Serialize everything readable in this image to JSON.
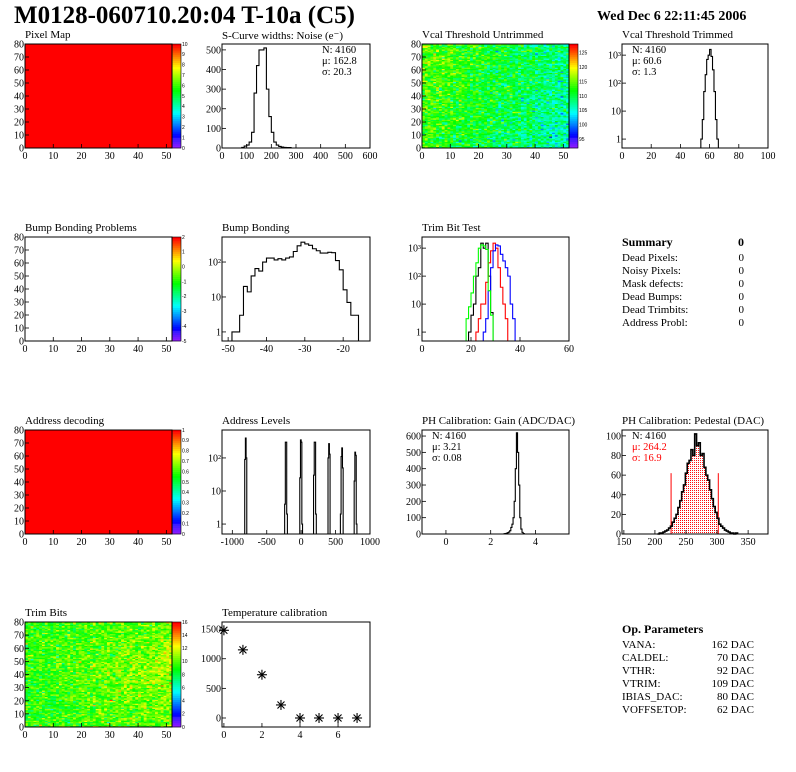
{
  "header": {
    "title": "M0128-060710.20:04 T-10a (C5)",
    "date": "Wed Dec  6 22:11:45 2006"
  },
  "palette": {
    "low": "#6600cc",
    "high": "#ff0000"
  },
  "chart_data": [
    {
      "type": "heatmap",
      "title": "Pixel Map",
      "xlim": [
        0,
        52
      ],
      "ylim": [
        0,
        80
      ],
      "xticks": [
        0,
        10,
        20,
        30,
        40,
        50
      ],
      "yticks": [
        0,
        10,
        20,
        30,
        40,
        50,
        60,
        70,
        80
      ],
      "zlim": [
        0,
        10
      ],
      "zticks": [
        "0",
        "1",
        "2",
        "3",
        "4",
        "5",
        "6",
        "7",
        "8",
        "9",
        "10"
      ],
      "uniform_value": 10
    },
    {
      "type": "bar",
      "title": "S-Curve widths: Noise (e⁻)",
      "xlim": [
        0,
        600
      ],
      "ylim": [
        0,
        530
      ],
      "xticks": [
        0,
        100,
        200,
        300,
        400,
        500,
        600
      ],
      "yticks": [
        0,
        100,
        200,
        300,
        400,
        500
      ],
      "bin_start": 80,
      "bin_width": 10,
      "values": [
        3,
        10,
        15,
        30,
        80,
        280,
        420,
        500,
        500,
        510,
        300,
        160,
        80,
        30,
        15,
        8,
        5,
        3,
        2,
        2
      ],
      "stats": [
        "N: 4160",
        "μ: 162.8",
        "σ: 20.3"
      ]
    },
    {
      "type": "heatmap",
      "title": "Vcal Threshold Untrimmed",
      "xlim": [
        0,
        52
      ],
      "ylim": [
        0,
        80
      ],
      "xticks": [
        0,
        10,
        20,
        30,
        40,
        50
      ],
      "yticks": [
        0,
        10,
        20,
        30,
        40,
        50,
        60,
        70,
        80
      ],
      "zlim": [
        92,
        128
      ],
      "zticks": [
        "95",
        "100",
        "105",
        "110",
        "115",
        "120",
        "125"
      ]
    },
    {
      "type": "bar",
      "title": "Vcal Threshold Trimmed",
      "log_y": true,
      "xlim": [
        0,
        100
      ],
      "ylim": [
        0.48,
        2500
      ],
      "xticks": [
        0,
        20,
        40,
        60,
        80,
        100
      ],
      "yticks": [
        1,
        10,
        100,
        1000
      ],
      "ytick_labels": [
        "1",
        "10",
        "10²",
        "10³"
      ],
      "bin_start": 54,
      "bin_width": 1,
      "values": [
        1,
        5,
        50,
        200,
        700,
        1000,
        1600,
        900,
        300,
        50,
        5,
        1
      ],
      "stats": [
        "N: 4160",
        "μ: 60.6",
        "σ:  1.3"
      ]
    },
    {
      "type": "heatmap",
      "title": "Bump Bonding Problems",
      "xlim": [
        0,
        52
      ],
      "ylim": [
        0,
        80
      ],
      "xticks": [
        0,
        10,
        20,
        30,
        40,
        50
      ],
      "yticks": [
        0,
        10,
        20,
        30,
        40,
        50,
        60,
        70,
        80
      ],
      "zlim": [
        -5,
        2
      ],
      "zticks": [
        "-5",
        "-4",
        "-3",
        "-2",
        "-1",
        "0",
        "1",
        "2"
      ],
      "empty": true
    },
    {
      "type": "bar",
      "title": "Bump Bonding",
      "log_y": true,
      "xlim": [
        -51.6,
        -13
      ],
      "ylim": [
        0.55,
        520
      ],
      "xticks": [
        -50,
        -40,
        -30,
        -20
      ],
      "yticks": [
        1,
        10,
        100
      ],
      "ytick_labels": [
        "1",
        "10",
        "10²"
      ],
      "bin_start": -49,
      "bin_width": 1,
      "values": [
        1,
        1,
        3,
        20,
        14,
        40,
        65,
        55,
        100,
        130,
        130,
        115,
        125,
        115,
        130,
        140,
        200,
        290,
        370,
        330,
        300,
        240,
        210,
        180,
        180,
        190,
        185,
        110,
        60,
        16,
        7,
        3,
        3
      ]
    },
    {
      "type": "bar",
      "title": "Trim Bit Test",
      "log_y": true,
      "xlim": [
        0,
        60
      ],
      "ylim": [
        0.48,
        2500
      ],
      "xticks": [
        0,
        20,
        40,
        60
      ],
      "yticks": [
        1,
        10,
        100,
        1000
      ],
      "ytick_labels": [
        "1",
        "10",
        "10²",
        "10³"
      ],
      "bin_width": 1,
      "series": [
        {
          "color": "#000000",
          "bin_start": 18,
          "values": [
            0,
            1,
            4,
            10,
            100,
            200,
            1500,
            1000,
            1500,
            100,
            5
          ]
        },
        {
          "color": "#ff0000",
          "bin_start": 22,
          "values": [
            1,
            3,
            10,
            10,
            60,
            300,
            800,
            1500,
            1000,
            200,
            40,
            10,
            3
          ]
        },
        {
          "color": "#0000ff",
          "bin_start": 25,
          "values": [
            1,
            3,
            30,
            200,
            800,
            1300,
            1200,
            600,
            350,
            200,
            100,
            10,
            3
          ]
        },
        {
          "color": "#00ff00",
          "bin_start": 18,
          "values": [
            3,
            8,
            25,
            100,
            300,
            1000,
            1300,
            1200,
            900,
            30,
            4
          ]
        }
      ]
    },
    {
      "type": "heatmap",
      "title": "Address decoding",
      "xlim": [
        0,
        52
      ],
      "ylim": [
        0,
        80
      ],
      "xticks": [
        0,
        10,
        20,
        30,
        40,
        50
      ],
      "yticks": [
        0,
        10,
        20,
        30,
        40,
        50,
        60,
        70,
        80
      ],
      "zlim": [
        0,
        1
      ],
      "zticks": [
        "0",
        "0.1",
        "0.2",
        "0.3",
        "0.4",
        "0.5",
        "0.6",
        "0.7",
        "0.8",
        "0.9",
        "1"
      ],
      "uniform_value": 1
    },
    {
      "type": "bar",
      "title": "Address Levels",
      "log_y": true,
      "xlim": [
        -1150,
        1000
      ],
      "ylim": [
        0.5,
        700
      ],
      "xticks": [
        -1000,
        -500,
        0,
        500,
        1000
      ],
      "yticks": [
        1,
        10,
        100
      ],
      "ytick_labels": [
        "1",
        "10",
        "10²"
      ],
      "bin_width": 10,
      "bins": [
        [
          -820,
          90
        ],
        [
          -810,
          400
        ],
        [
          -800,
          100
        ],
        [
          -240,
          4
        ],
        [
          -230,
          300
        ],
        [
          -220,
          300
        ],
        [
          -210,
          2
        ],
        [
          -20,
          25
        ],
        [
          -10,
          350
        ],
        [
          0,
          300
        ],
        [
          10,
          1
        ],
        [
          180,
          30
        ],
        [
          190,
          300
        ],
        [
          200,
          300
        ],
        [
          210,
          2
        ],
        [
          390,
          100
        ],
        [
          400,
          270
        ],
        [
          410,
          130
        ],
        [
          570,
          2
        ],
        [
          580,
          110
        ],
        [
          590,
          200
        ],
        [
          600,
          50
        ],
        [
          770,
          20
        ],
        [
          780,
          150
        ],
        [
          790,
          120
        ],
        [
          800,
          1
        ]
      ]
    },
    {
      "type": "bar",
      "title": "PH Calibration: Gain (ADC/DAC)",
      "xlim": [
        -1.07,
        5.5
      ],
      "ylim": [
        0,
        637
      ],
      "xticks": [
        0,
        2,
        4
      ],
      "yticks": [
        0,
        100,
        200,
        300,
        400,
        500,
        600
      ],
      "bin_start": 2.6,
      "bin_width": 0.05,
      "values": [
        2,
        3,
        5,
        8,
        12,
        20,
        40,
        60,
        100,
        200,
        400,
        620,
        500,
        300,
        100,
        30,
        10,
        3
      ],
      "stats": [
        "N: 4160",
        "μ: 3.21",
        "σ: 0.08"
      ]
    },
    {
      "type": "bar",
      "title": "PH Calibration: Pedestal (DAC)",
      "xlim": [
        147,
        382
      ],
      "ylim": [
        0,
        106
      ],
      "xticks": [
        150,
        200,
        250,
        300,
        350
      ],
      "yticks": [
        0,
        20,
        40,
        60,
        80,
        100
      ],
      "bin_start": 204,
      "bin_width": 3,
      "values": [
        0,
        1,
        1,
        2,
        3,
        4,
        6,
        8,
        12,
        16,
        20,
        27,
        34,
        43,
        50,
        62,
        72,
        75,
        86,
        80,
        102,
        90,
        93,
        80,
        82,
        68,
        60,
        55,
        45,
        36,
        28,
        22,
        16,
        10,
        8,
        6,
        4,
        3,
        2,
        1,
        1,
        0,
        1
      ],
      "fit_range": [
        226,
        302
      ],
      "fit_color": "#ff0000",
      "stats": [
        "N: 4160",
        "μ: 264.2",
        "σ: 16.9"
      ]
    },
    {
      "type": "heatmap",
      "title": "Trim Bits",
      "xlim": [
        0,
        52
      ],
      "ylim": [
        0,
        80
      ],
      "xticks": [
        0,
        10,
        20,
        30,
        40,
        50
      ],
      "yticks": [
        0,
        10,
        20,
        30,
        40,
        50,
        60,
        70,
        80
      ],
      "zlim": [
        0,
        16
      ],
      "zticks": [
        "0",
        "2",
        "4",
        "6",
        "8",
        "10",
        "12",
        "14",
        "16"
      ]
    },
    {
      "type": "scatter",
      "title": "Temperature calibration",
      "xlim": [
        -0.1,
        7.68
      ],
      "ylim": [
        -152,
        1620
      ],
      "xticks": [
        0,
        2,
        4,
        6
      ],
      "yticks": [
        0,
        500,
        1000,
        1500
      ],
      "x": [
        0,
        1,
        2,
        3,
        4,
        5,
        6,
        7
      ],
      "y": [
        1480,
        1150,
        730,
        220,
        0,
        0,
        0,
        0
      ]
    }
  ],
  "summary": {
    "title": "Summary",
    "total": "0",
    "items": [
      {
        "label": "Dead Pixels:",
        "value": "0"
      },
      {
        "label": "Noisy Pixels:",
        "value": "0"
      },
      {
        "label": "Mask defects:",
        "value": "0"
      },
      {
        "label": "Dead Bumps:",
        "value": "0"
      },
      {
        "label": "Dead Trimbits:",
        "value": "0"
      },
      {
        "label": "Address Probl:",
        "value": "0"
      }
    ]
  },
  "op_parameters": {
    "title": "Op. Parameters",
    "items": [
      {
        "label": "VANA:",
        "value": "162 DAC"
      },
      {
        "label": "CALDEL:",
        "value": "70 DAC"
      },
      {
        "label": "VTHR:",
        "value": "92 DAC"
      },
      {
        "label": "VTRIM:",
        "value": "109 DAC"
      },
      {
        "label": "IBIAS_DAC:",
        "value": "80 DAC"
      },
      {
        "label": "VOFFSETOP:",
        "value": "62 DAC"
      }
    ]
  }
}
